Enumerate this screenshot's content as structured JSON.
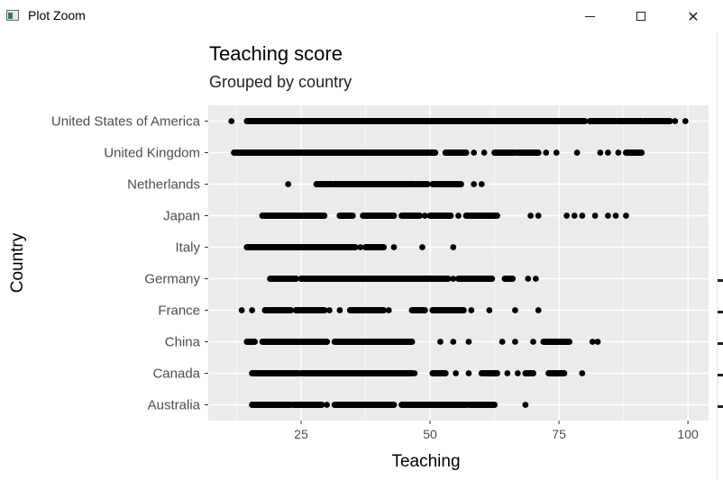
{
  "window": {
    "title": "Plot Zoom",
    "icon": "plot-window-icon",
    "minimize_icon": "minimize-icon",
    "maximize_icon": "maximize-icon",
    "close_icon": "close-icon",
    "close_glyph": "✕"
  },
  "chart_data": {
    "type": "scatter",
    "title": "Teaching score",
    "subtitle": "Grouped by country",
    "xlabel": "Teaching",
    "ylabel": "Country",
    "xlim": [
      7,
      104
    ],
    "xticks": [
      25,
      50,
      75,
      100
    ],
    "categories": [
      "Australia",
      "Canada",
      "China",
      "France",
      "Germany",
      "Italy",
      "Japan",
      "Netherlands",
      "United Kingdom",
      "United States of America"
    ],
    "grid": true,
    "background": "#ebebeb",
    "point_color": "#000000",
    "points": {
      "Australia": {
        "ranges": [
          [
            15.5,
            23
          ],
          [
            23.5,
            29
          ],
          [
            31.5,
            43
          ],
          [
            44.5,
            57
          ],
          [
            57.5,
            62.5
          ]
        ],
        "points": [
          30,
          45.5,
          59,
          68.5
        ]
      },
      "Canada": {
        "ranges": [
          [
            15.5,
            24.5
          ],
          [
            25,
            46.5
          ],
          [
            50.5,
            53
          ],
          [
            60,
            63
          ],
          [
            68.5,
            70
          ],
          [
            73,
            76
          ]
        ],
        "points": [
          47,
          55,
          57.5,
          65,
          67,
          79.5
        ]
      },
      "China": {
        "ranges": [
          [
            14.5,
            16
          ],
          [
            17.5,
            30
          ],
          [
            31.5,
            46.5
          ],
          [
            72,
            77
          ]
        ],
        "points": [
          52,
          54.5,
          57.5,
          64,
          66.5,
          70,
          81.5,
          82.5
        ]
      },
      "France": {
        "ranges": [
          [
            18,
            23
          ],
          [
            24,
            29.5
          ],
          [
            34.5,
            41
          ],
          [
            46.5,
            49
          ],
          [
            50.5,
            56.5
          ]
        ],
        "points": [
          13.5,
          15.5,
          30.5,
          32.5,
          42,
          58,
          61.5,
          66.5,
          71
        ]
      },
      "Germany": {
        "ranges": [
          [
            19,
            24
          ],
          [
            25,
            53.5
          ],
          [
            55.5,
            62
          ],
          [
            64.5,
            66
          ]
        ],
        "points": [
          54.5,
          69,
          70.5
        ]
      },
      "Italy": {
        "ranges": [
          [
            14.5,
            35.5
          ],
          [
            37.5,
            41
          ]
        ],
        "points": [
          36.5,
          43,
          48.5,
          54.5
        ]
      },
      "Japan": {
        "ranges": [
          [
            17.5,
            29.5
          ],
          [
            32.5,
            35
          ],
          [
            37,
            43
          ],
          [
            44.5,
            48
          ],
          [
            50,
            54
          ],
          [
            57,
            63
          ]
        ],
        "points": [
          49,
          55.5,
          69.5,
          71,
          76.5,
          78,
          79.5,
          82,
          84.5,
          86,
          88
        ]
      },
      "Netherlands": {
        "ranges": [
          [
            28,
            31
          ],
          [
            31.5,
            47
          ],
          [
            47.5,
            49.5
          ],
          [
            50.5,
            56
          ]
        ],
        "points": [
          22.5,
          58.5,
          60
        ]
      },
      "United Kingdom": {
        "ranges": [
          [
            12,
            51
          ],
          [
            53,
            57
          ],
          [
            62.5,
            66.5
          ],
          [
            67,
            71
          ],
          [
            88,
            91
          ]
        ],
        "points": [
          58.5,
          60.5,
          72.5,
          74.5,
          78.5,
          83,
          84.5,
          86.5
        ]
      },
      "United States of America": {
        "ranges": [
          [
            14.5,
            80
          ],
          [
            81,
            86
          ],
          [
            86.5,
            91
          ],
          [
            91.5,
            96.5
          ]
        ],
        "points": [
          11.5,
          97.5,
          99.5
        ]
      }
    }
  }
}
